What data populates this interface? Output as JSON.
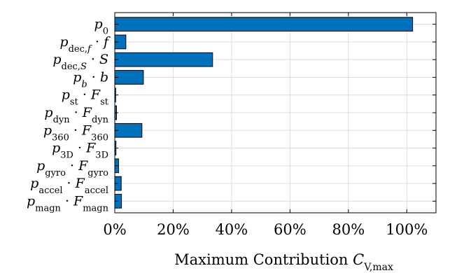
{
  "chart_data": {
    "type": "bar",
    "orientation": "horizontal",
    "categories": [
      {
        "base": "p",
        "sub": "0",
        "op": "",
        "mult": "",
        "msub": ""
      },
      {
        "base": "p",
        "sub": "dec,f",
        "op": "·",
        "mult": "f",
        "msub": ""
      },
      {
        "base": "p",
        "sub": "dec,S",
        "op": "·",
        "mult": "S",
        "msub": ""
      },
      {
        "base": "p",
        "sub": "b",
        "op": "·",
        "mult": "b",
        "msub": ""
      },
      {
        "base": "p",
        "sub": "st",
        "op": "·",
        "mult": "F",
        "msub": "st"
      },
      {
        "base": "p",
        "sub": "dyn",
        "op": "·",
        "mult": "F",
        "msub": "dyn"
      },
      {
        "base": "p",
        "sub": "360",
        "op": "·",
        "mult": "F",
        "msub": "360"
      },
      {
        "base": "p",
        "sub": "3D",
        "op": "·",
        "mult": "F",
        "msub": "3D"
      },
      {
        "base": "p",
        "sub": "gyro",
        "op": "·",
        "mult": "F",
        "msub": "gyro"
      },
      {
        "base": "p",
        "sub": "accel",
        "op": "·",
        "mult": "F",
        "msub": "accel"
      },
      {
        "base": "p",
        "sub": "magn",
        "op": "·",
        "mult": "F",
        "msub": "magn"
      }
    ],
    "values": [
      102,
      3.8,
      33.5,
      9.8,
      0.3,
      0.6,
      9.3,
      0.4,
      1.3,
      2.2,
      2.3
    ],
    "xlim": [
      0,
      110
    ],
    "xticks": [
      0,
      20,
      40,
      60,
      80,
      100
    ],
    "xtick_labels": [
      "0%",
      "20%",
      "40%",
      "60%",
      "80%",
      "100%"
    ],
    "xlabel": {
      "text": "Maximum Contribution ",
      "sym": "C",
      "sub": "V,max"
    },
    "grid": true,
    "bar_color": "#0072BD",
    "bar_edge": "#000000",
    "grid_color": "#dcdcdc"
  }
}
